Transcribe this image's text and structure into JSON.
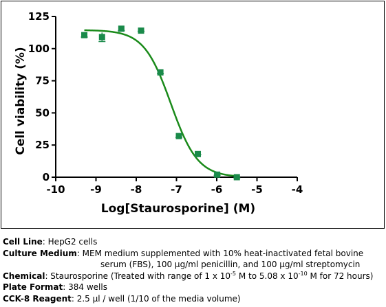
{
  "chart_data": {
    "type": "scatter",
    "xlabel": "Log[Staurosporine] (M)",
    "ylabel": "Cell viability (%)",
    "xlim": [
      -10,
      -4
    ],
    "ylim": [
      0,
      125
    ],
    "x_ticks": [
      -10,
      -9,
      -8,
      -7,
      -6,
      -5,
      -4
    ],
    "y_ticks": [
      0,
      25,
      50,
      75,
      100,
      125
    ],
    "marker_color": "#1a8a4a",
    "curve_color": "#1a8a1a",
    "points": [
      {
        "x": -9.29,
        "y": 110.5,
        "err": 1.5
      },
      {
        "x": -8.85,
        "y": 109.0,
        "err": 3.5
      },
      {
        "x": -8.37,
        "y": 115.5,
        "err": 1.5
      },
      {
        "x": -7.88,
        "y": 114.0,
        "err": 0.5
      },
      {
        "x": -7.4,
        "y": 81.5,
        "err": 1.0
      },
      {
        "x": -6.94,
        "y": 32.0,
        "err": 1.0
      },
      {
        "x": -6.47,
        "y": 18.0,
        "err": 0.5
      },
      {
        "x": -5.99,
        "y": 2.0,
        "err": 0.5
      },
      {
        "x": -5.5,
        "y": 0.0,
        "err": 0.5
      }
    ],
    "fit": {
      "model": "four-parameter logistic",
      "top": 114.5,
      "bottom": 0.0,
      "logIC50": -7.14,
      "hill": -1.3,
      "x_range": [
        -9.29,
        -5.5
      ]
    }
  },
  "caption": {
    "cell_line_label": "Cell Line",
    "cell_line_value": "HepG2 cells",
    "medium_label": "Culture Medium",
    "medium_value_1": "MEM medium supplemented with 10% heat-inactivated fetal bovine",
    "medium_value_2": "serum (FBS), 100 µg/ml penicillin, and 100 µg/ml streptomycin",
    "chemical_label": "Chemical",
    "chemical_value_a": "Staurosporine (Treated with range of 1 x 10",
    "chemical_exp_1": "-5",
    "chemical_value_b": " M to 5.08 x 10",
    "chemical_exp_2": "-10",
    "chemical_value_c": " M for 72 hours)",
    "plate_label": "Plate Format",
    "plate_value": "384 wells",
    "reagent_label": "CCK-8 Reagent",
    "reagent_value": "2.5 µl / well (1/10 of the media volume)"
  }
}
